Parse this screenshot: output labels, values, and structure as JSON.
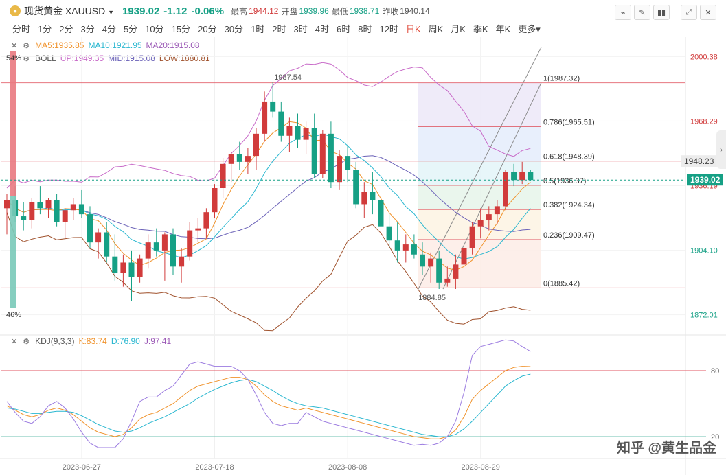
{
  "header": {
    "symbol_name": "现货黄金",
    "symbol_code": "XAUUSD",
    "dropdown_icon": "chevron-down-icon",
    "price": "1939.02",
    "change": "-1.12",
    "change_pct": "-0.06%",
    "high_label": "最高",
    "high": "1944.12",
    "open_label": "开盘",
    "open": "1939.96",
    "low_label": "最低",
    "low": "1938.71",
    "prev_label": "昨收",
    "prev": "1940.14"
  },
  "tools": [
    "line-chart-icon",
    "pen-icon",
    "candle-icon",
    "expand-icon",
    "close-icon"
  ],
  "tabs": [
    "分时",
    "1分",
    "2分",
    "3分",
    "4分",
    "5分",
    "10分",
    "15分",
    "20分",
    "30分",
    "1时",
    "2时",
    "3时",
    "4时",
    "6时",
    "8时",
    "12时",
    "日K",
    "周K",
    "月K",
    "季K",
    "年K",
    "更多"
  ],
  "active_tab": "日K",
  "legend_ma": {
    "ma5": "MA5:1935.85",
    "ma10": "MA10:1921.95",
    "ma20": "MA20:1915.08"
  },
  "legend_boll": {
    "name": "BOLL",
    "up": "UP:1949.35",
    "mid": "MID:1915.08",
    "low": "LOW:1880.81"
  },
  "legend_kdj": {
    "name": "KDJ(9,3,3)",
    "k": "K:83.74",
    "d": "D:76.90",
    "j": "J:97.41"
  },
  "labels": {
    "pct_top": "54%",
    "pct_bottom": "46%",
    "peak": "1987.54",
    "trough": "1884.85",
    "current_price_tag": "1939.02",
    "crosshair_price": "1948.23"
  },
  "watermark": "知乎 @黄生品金",
  "colors": {
    "up": "#d13b3b",
    "down": "#16a085",
    "ma5": "#f0922b",
    "ma10": "#2ab7d0",
    "ma20": "#6b62b8",
    "boll_up": "#c86ac8",
    "boll_low": "#a0522d",
    "fib": "#e05560"
  },
  "chart_data": [
    {
      "type": "candlestick",
      "price_axis_ticks": [
        2000.38,
        1968.29,
        1936.19,
        1904.1,
        1872.01
      ],
      "price_range": [
        1862,
        2008
      ],
      "x_labels": [
        "2023-06-27",
        "2023-07-18",
        "2023-08-08",
        "2023-08-29"
      ],
      "candles": [
        [
          1925,
          1932,
          1912,
          1929
        ],
        [
          1929,
          1936,
          1918,
          1921
        ],
        [
          1921,
          1928,
          1914,
          1919
        ],
        [
          1919,
          1930,
          1915,
          1928
        ],
        [
          1928,
          1936,
          1922,
          1925
        ],
        [
          1925,
          1930,
          1920,
          1929
        ],
        [
          1929,
          1932,
          1916,
          1918
        ],
        [
          1918,
          1925,
          1910,
          1924
        ],
        [
          1924,
          1930,
          1919,
          1927
        ],
        [
          1927,
          1934,
          1920,
          1922
        ],
        [
          1922,
          1926,
          1905,
          1908
        ],
        [
          1908,
          1915,
          1900,
          1913
        ],
        [
          1913,
          1918,
          1898,
          1901
        ],
        [
          1901,
          1912,
          1889,
          1893
        ],
        [
          1893,
          1902,
          1886,
          1898
        ],
        [
          1898,
          1904,
          1879,
          1891
        ],
        [
          1891,
          1902,
          1888,
          1900
        ],
        [
          1900,
          1912,
          1895,
          1908
        ],
        [
          1908,
          1915,
          1901,
          1904
        ],
        [
          1904,
          1913,
          1889,
          1912
        ],
        [
          1912,
          1915,
          1892,
          1896
        ],
        [
          1896,
          1905,
          1888,
          1901
        ],
        [
          1901,
          1918,
          1899,
          1914
        ],
        [
          1914,
          1920,
          1908,
          1915
        ],
        [
          1915,
          1925,
          1910,
          1923
        ],
        [
          1923,
          1937,
          1920,
          1935
        ],
        [
          1935,
          1950,
          1930,
          1947
        ],
        [
          1947,
          1953,
          1938,
          1952
        ],
        [
          1952,
          1958,
          1944,
          1948
        ],
        [
          1948,
          1955,
          1942,
          1951
        ],
        [
          1951,
          1965,
          1944,
          1962
        ],
        [
          1962,
          1983,
          1958,
          1978
        ],
        [
          1978,
          1987.54,
          1970,
          1973
        ],
        [
          1973,
          1978,
          1958,
          1961
        ],
        [
          1961,
          1970,
          1953,
          1966
        ],
        [
          1966,
          1972,
          1955,
          1959
        ],
        [
          1959,
          1968,
          1952,
          1965
        ],
        [
          1965,
          1972,
          1940,
          1942
        ],
        [
          1942,
          1964,
          1940,
          1962
        ],
        [
          1962,
          1968,
          1935,
          1938
        ],
        [
          1938,
          1954,
          1934,
          1951
        ],
        [
          1951,
          1956,
          1938,
          1944
        ],
        [
          1944,
          1948,
          1925,
          1927
        ],
        [
          1927,
          1938,
          1920,
          1933
        ],
        [
          1933,
          1943,
          1922,
          1929
        ],
        [
          1929,
          1937,
          1914,
          1916
        ],
        [
          1916,
          1922,
          1905,
          1909
        ],
        [
          1909,
          1918,
          1898,
          1904
        ],
        [
          1904,
          1912,
          1898,
          1907
        ],
        [
          1907,
          1912,
          1900,
          1902
        ],
        [
          1902,
          1908,
          1892,
          1896
        ],
        [
          1896,
          1903,
          1888,
          1900
        ],
        [
          1900,
          1904,
          1884.85,
          1888
        ],
        [
          1888,
          1896,
          1886,
          1890
        ],
        [
          1890,
          1902,
          1884.85,
          1897
        ],
        [
          1897,
          1907,
          1891,
          1905
        ],
        [
          1905,
          1918,
          1902,
          1916
        ],
        [
          1916,
          1925,
          1910,
          1919
        ],
        [
          1919,
          1926,
          1914,
          1922
        ],
        [
          1922,
          1929,
          1917,
          1926
        ],
        [
          1926,
          1944,
          1924,
          1943
        ],
        [
          1943,
          1947,
          1936,
          1939
        ],
        [
          1939,
          1948,
          1937,
          1943
        ],
        [
          1943,
          1944.12,
          1938.71,
          1939.02
        ]
      ],
      "fibonacci": [
        {
          "level": "1",
          "price": 1987.32
        },
        {
          "level": "0.786",
          "price": 1965.51
        },
        {
          "level": "0.618",
          "price": 1948.39
        },
        {
          "level": "0.5",
          "price": 1936.37
        },
        {
          "level": "0.382",
          "price": 1924.34
        },
        {
          "level": "0.236",
          "price": 1909.47
        },
        {
          "level": "0",
          "price": 1885.42
        }
      ]
    },
    {
      "type": "line",
      "name": "KDJ",
      "y_ticks": [
        80,
        20
      ],
      "y_range": [
        0,
        110
      ],
      "series": [
        {
          "name": "K",
          "values": [
            48,
            44,
            40,
            38,
            40,
            44,
            46,
            44,
            40,
            34,
            28,
            24,
            22,
            20,
            22,
            28,
            36,
            40,
            42,
            46,
            50,
            56,
            62,
            66,
            68,
            70,
            72,
            74,
            74,
            72,
            66,
            58,
            52,
            48,
            46,
            44,
            46,
            44,
            42,
            40,
            38,
            36,
            34,
            32,
            30,
            28,
            26,
            24,
            22,
            20,
            19,
            18,
            18,
            20,
            26,
            38,
            54,
            62,
            68,
            74,
            80,
            83,
            84,
            83.74
          ]
        },
        {
          "name": "D",
          "values": [
            46,
            45,
            43,
            41,
            41,
            42,
            43,
            43,
            42,
            39,
            35,
            31,
            28,
            25,
            24,
            25,
            28,
            32,
            35,
            38,
            42,
            46,
            50,
            55,
            59,
            63,
            66,
            69,
            71,
            72,
            70,
            66,
            62,
            57,
            53,
            50,
            48,
            47,
            46,
            44,
            42,
            40,
            38,
            36,
            34,
            32,
            30,
            28,
            26,
            24,
            22,
            21,
            20,
            20,
            22,
            27,
            34,
            42,
            50,
            58,
            66,
            71,
            75,
            76.9
          ]
        },
        {
          "name": "J",
          "values": [
            52,
            42,
            34,
            32,
            38,
            48,
            52,
            46,
            36,
            24,
            14,
            10,
            10,
            10,
            18,
            34,
            52,
            56,
            56,
            62,
            66,
            76,
            86,
            88,
            86,
            84,
            84,
            84,
            80,
            72,
            58,
            42,
            32,
            30,
            32,
            32,
            42,
            38,
            34,
            32,
            30,
            28,
            26,
            24,
            22,
            20,
            18,
            16,
            14,
            12,
            13,
            12,
            14,
            20,
            34,
            60,
            94,
            102,
            104,
            106,
            108,
            107,
            102,
            97.41
          ]
        }
      ]
    }
  ]
}
